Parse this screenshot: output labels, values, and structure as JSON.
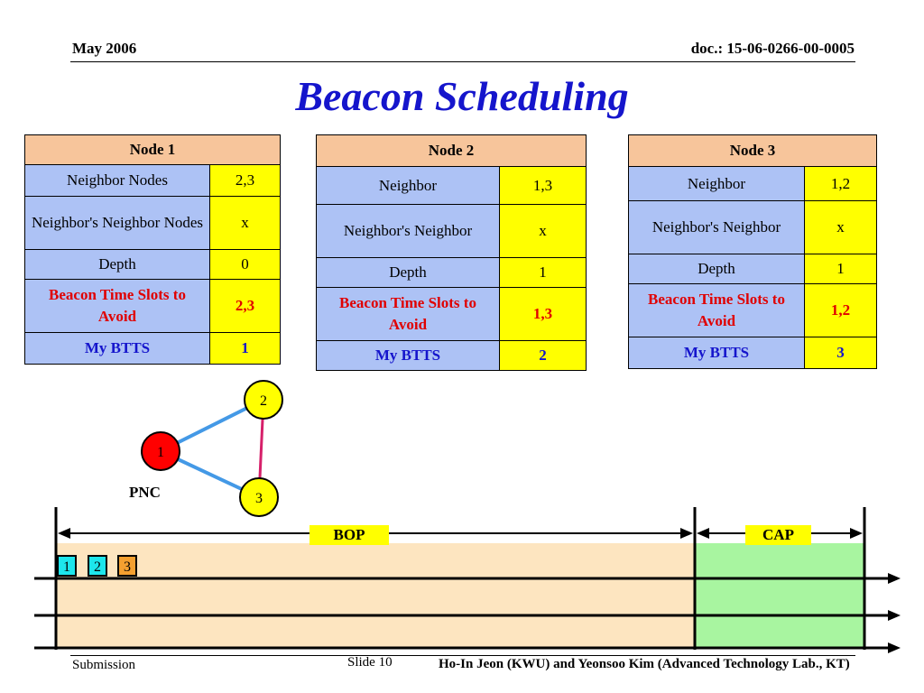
{
  "header": {
    "date": "May 2006",
    "doc": "doc.: 15-06-0266-00-0005"
  },
  "title": "Beacon Scheduling",
  "nodes": [
    {
      "name": "Node 1",
      "rows": [
        {
          "label": "Neighbor Nodes",
          "value": "2,3"
        },
        {
          "label": "Neighbor's Neighbor Nodes",
          "value": "x"
        },
        {
          "label": "Depth",
          "value": "0"
        },
        {
          "label": "Beacon Time Slots to Avoid",
          "value": "2,3"
        },
        {
          "label": "My BTTS",
          "value": "1"
        }
      ]
    },
    {
      "name": "Node 2",
      "rows": [
        {
          "label": "Neighbor",
          "value": "1,3"
        },
        {
          "label": "Neighbor's Neighbor",
          "value": "x"
        },
        {
          "label": "Depth",
          "value": "1"
        },
        {
          "label": "Beacon Time Slots to Avoid",
          "value": "1,3"
        },
        {
          "label": "My BTTS",
          "value": "2"
        }
      ]
    },
    {
      "name": "Node 3",
      "rows": [
        {
          "label": "Neighbor",
          "value": "1,2"
        },
        {
          "label": "Neighbor's Neighbor",
          "value": "x"
        },
        {
          "label": "Depth",
          "value": "1"
        },
        {
          "label": "Beacon Time Slots to Avoid",
          "value": "1,2"
        },
        {
          "label": "My BTTS",
          "value": "3"
        }
      ]
    }
  ],
  "diagram": {
    "node1": "1",
    "node2": "2",
    "node3": "3",
    "pnc_label": "PNC"
  },
  "timeline": {
    "bop": "BOP",
    "cap": "CAP",
    "slots": [
      "1",
      "2",
      "3"
    ]
  },
  "footer": {
    "submission": "Submission",
    "slide": "Slide 10",
    "authors": "Ho-In Jeon (KWU) and Yeonsoo Kim (Advanced Technology Lab., KT)"
  },
  "colors": {
    "title": "#1515cc",
    "header_cell": "#f7c59b",
    "label_cell": "#adc2f5",
    "value_cell": "#ffff00",
    "bop_region": "#fde5c0",
    "cap_region": "#a8f5a0",
    "node1": "#ff0000",
    "node_other": "#ffff00"
  }
}
